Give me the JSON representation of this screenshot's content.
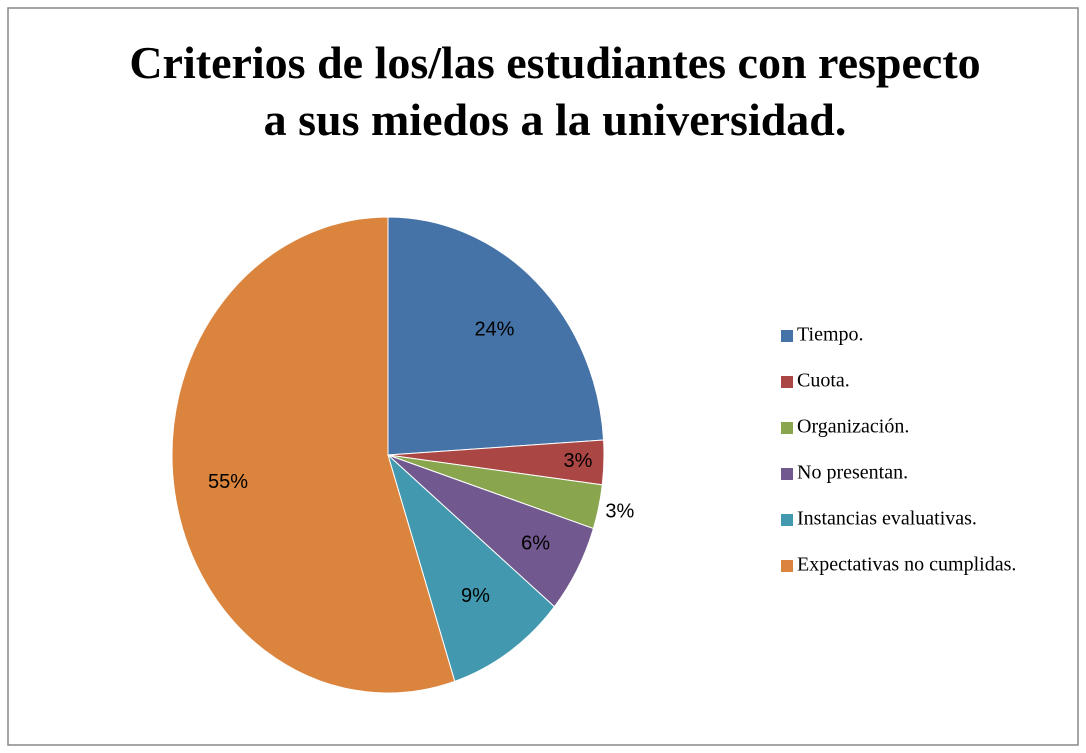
{
  "chart_data": {
    "type": "pie",
    "title": [
      "Criterios de los/las estudiantes con respecto",
      "a sus miedos a la universidad."
    ],
    "categories": [
      "Tiempo.",
      "Cuota.",
      "Organización.",
      "No presentan.",
      "Instancias evaluativas.",
      "Expectativas no cumplidas."
    ],
    "values": [
      24,
      3,
      3,
      6,
      9,
      55
    ],
    "value_labels": [
      "24%",
      "3%",
      "3%",
      "6%",
      "9%",
      "55%"
    ],
    "colors": [
      "#4572a7",
      "#aa4643",
      "#89a54e",
      "#71588f",
      "#4198af",
      "#db843d"
    ],
    "legend": "right"
  }
}
